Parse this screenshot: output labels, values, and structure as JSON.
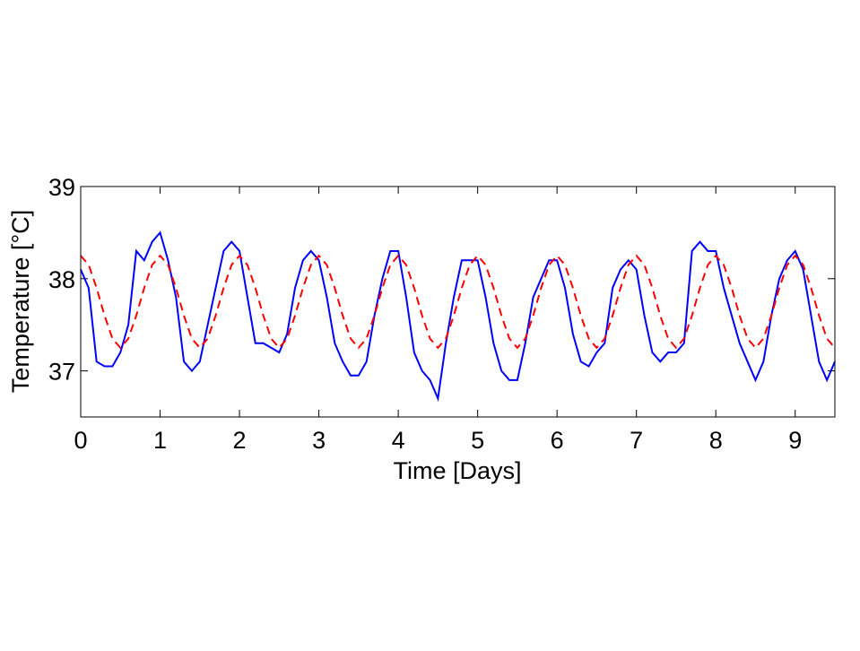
{
  "chart_data": {
    "type": "line",
    "xlabel": "Time [Days]",
    "ylabel": "Temperature [°C]",
    "x": [
      0,
      0.1,
      0.2,
      0.3,
      0.4,
      0.5,
      0.6,
      0.7,
      0.8,
      0.9,
      1,
      1.1,
      1.2,
      1.3,
      1.4,
      1.5,
      1.6,
      1.7,
      1.8,
      1.9,
      2,
      2.1,
      2.2,
      2.3,
      2.4,
      2.5,
      2.6,
      2.7,
      2.8,
      2.9,
      3,
      3.1,
      3.2,
      3.3,
      3.4,
      3.5,
      3.6,
      3.7,
      3.8,
      3.9,
      4,
      4.1,
      4.2,
      4.3,
      4.4,
      4.5,
      4.6,
      4.7,
      4.8,
      4.9,
      5,
      5.1,
      5.2,
      5.3,
      5.4,
      5.5,
      5.6,
      5.7,
      5.8,
      5.9,
      6,
      6.1,
      6.2,
      6.3,
      6.4,
      6.5,
      6.6,
      6.7,
      6.8,
      6.9,
      7,
      7.1,
      7.2,
      7.3,
      7.4,
      7.5,
      7.6,
      7.7,
      7.8,
      7.9,
      8,
      8.1,
      8.2,
      8.3,
      8.4,
      8.5,
      8.6,
      8.7,
      8.8,
      8.9,
      9,
      9.1,
      9.2,
      9.3,
      9.4,
      9.5
    ],
    "series": [
      {
        "color": "#0000ff",
        "dash": "solid",
        "values": [
          38.1,
          37.9,
          37.1,
          37.05,
          37.05,
          37.2,
          37.5,
          38.3,
          38.2,
          38.4,
          38.5,
          38.2,
          37.8,
          37.1,
          37.0,
          37.1,
          37.5,
          37.9,
          38.3,
          38.4,
          38.3,
          37.8,
          37.3,
          37.3,
          37.25,
          37.2,
          37.4,
          37.9,
          38.2,
          38.3,
          38.2,
          37.8,
          37.3,
          37.1,
          36.95,
          36.95,
          37.1,
          37.6,
          38.0,
          38.3,
          38.3,
          37.8,
          37.2,
          37.0,
          36.9,
          36.7,
          37.3,
          37.8,
          38.2,
          38.2,
          38.2,
          37.8,
          37.3,
          37.0,
          36.9,
          36.9,
          37.3,
          37.8,
          38.0,
          38.2,
          38.2,
          37.9,
          37.4,
          37.1,
          37.05,
          37.2,
          37.3,
          37.9,
          38.1,
          38.2,
          38.1,
          37.6,
          37.2,
          37.1,
          37.2,
          37.2,
          37.3,
          38.3,
          38.4,
          38.3,
          38.3,
          37.9,
          37.6,
          37.3,
          37.1,
          36.9,
          37.1,
          37.6,
          38.0,
          38.2,
          38.3,
          38.1,
          37.6,
          37.1,
          36.9,
          37.1
        ]
      },
      {
        "color": "#ff0000",
        "dash": "dashed",
        "values": [
          38.25,
          38.15,
          37.9,
          37.6,
          37.35,
          37.25,
          37.35,
          37.6,
          37.9,
          38.15,
          38.25,
          38.15,
          37.9,
          37.6,
          37.35,
          37.25,
          37.35,
          37.6,
          37.9,
          38.15,
          38.25,
          38.15,
          37.9,
          37.6,
          37.35,
          37.25,
          37.35,
          37.6,
          37.9,
          38.15,
          38.25,
          38.15,
          37.9,
          37.6,
          37.35,
          37.25,
          37.35,
          37.6,
          37.9,
          38.15,
          38.25,
          38.15,
          37.9,
          37.6,
          37.35,
          37.25,
          37.35,
          37.6,
          37.9,
          38.15,
          38.25,
          38.15,
          37.9,
          37.6,
          37.35,
          37.25,
          37.35,
          37.6,
          37.9,
          38.15,
          38.25,
          38.15,
          37.9,
          37.6,
          37.35,
          37.25,
          37.35,
          37.6,
          37.9,
          38.15,
          38.25,
          38.15,
          37.9,
          37.6,
          37.35,
          37.25,
          37.35,
          37.6,
          37.9,
          38.15,
          38.25,
          38.15,
          37.9,
          37.6,
          37.35,
          37.25,
          37.35,
          37.6,
          37.9,
          38.15,
          38.25,
          38.15,
          37.9,
          37.6,
          37.35,
          37.25
        ]
      }
    ],
    "xlim": [
      0,
      9.5
    ],
    "xticks": [
      0,
      1,
      2,
      3,
      4,
      5,
      6,
      7,
      8,
      9
    ],
    "ylim": [
      36.5,
      39
    ],
    "yticks": [
      37,
      38,
      39
    ],
    "grid": false
  }
}
